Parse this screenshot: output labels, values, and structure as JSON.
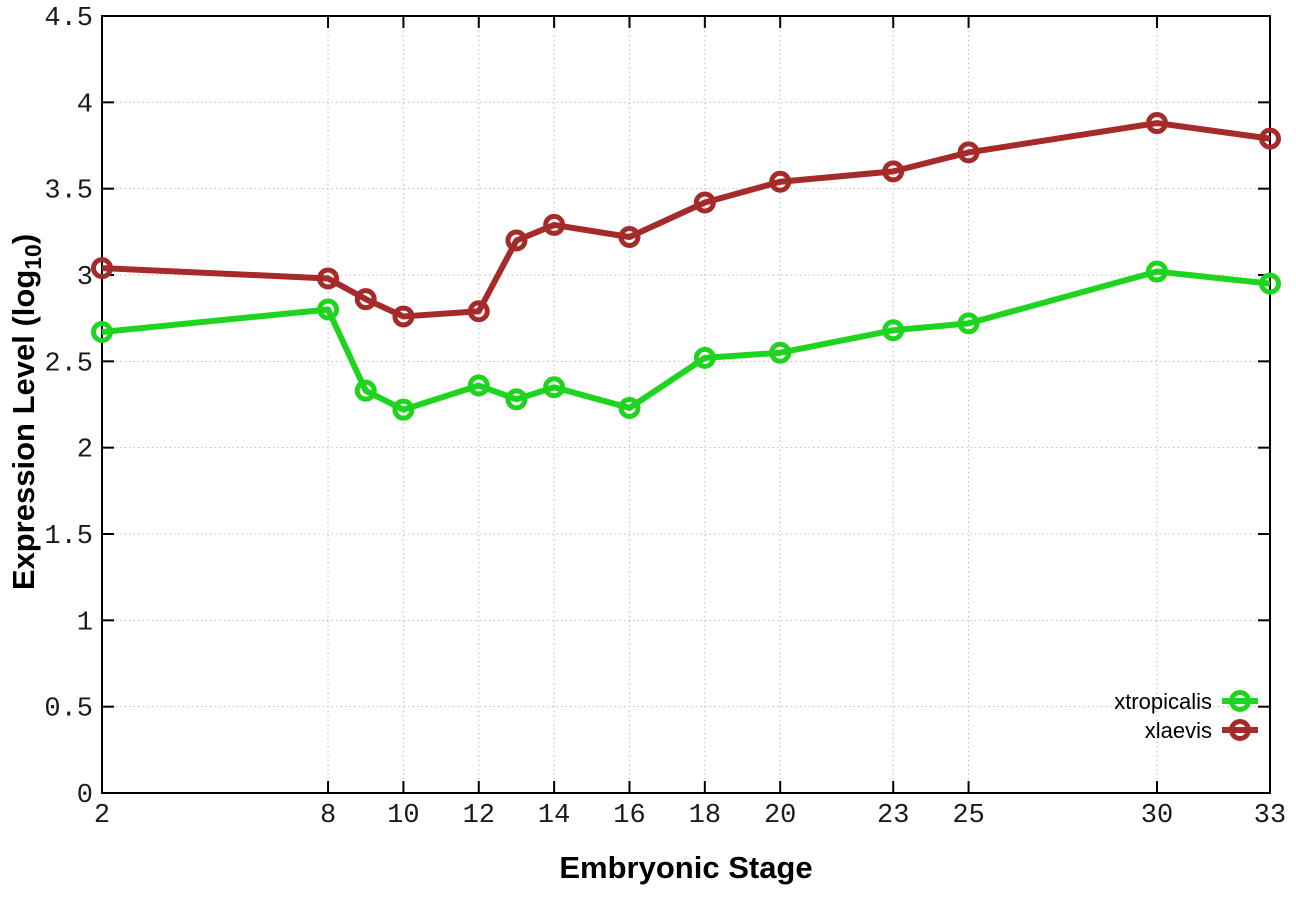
{
  "chart_data": {
    "type": "line",
    "title": "",
    "xlabel": "Embryonic Stage",
    "ylabel": "Expression Level (log10)",
    "ylabel_parts": {
      "prefix": "Expression Level (log",
      "sub": "10",
      "suffix": ")"
    },
    "x": [
      2,
      8,
      9,
      10,
      12,
      13,
      14,
      16,
      18,
      20,
      23,
      25,
      30,
      33
    ],
    "series": [
      {
        "name": "xtropicalis",
        "color": "#1ED41E",
        "marker": "open-circle",
        "values": [
          2.67,
          2.8,
          2.33,
          2.22,
          2.36,
          2.28,
          2.35,
          2.23,
          2.52,
          2.55,
          2.68,
          2.72,
          3.02,
          2.95
        ]
      },
      {
        "name": "xlaevis",
        "color": "#A52A2A",
        "marker": "open-circle",
        "values": [
          3.04,
          2.98,
          2.86,
          2.76,
          2.79,
          3.2,
          3.29,
          3.22,
          3.42,
          3.54,
          3.6,
          3.71,
          3.88,
          3.79
        ]
      }
    ],
    "xlim": [
      2,
      33
    ],
    "ylim": [
      0,
      4.5
    ],
    "xticks": [
      2,
      8,
      10,
      12,
      14,
      16,
      18,
      20,
      23,
      25,
      30,
      33
    ],
    "xtick_labels": [
      "2",
      "8",
      "10",
      "12",
      "14",
      "16",
      "18",
      "20",
      "23",
      "25",
      "30",
      "33"
    ],
    "yticks": [
      0,
      0.5,
      1,
      1.5,
      2,
      2.5,
      3,
      3.5,
      4,
      4.5
    ],
    "ytick_labels": [
      "0",
      "0.5",
      "1",
      "1.5",
      "2",
      "2.5",
      "3",
      "3.5",
      "4",
      "4.5"
    ],
    "grid": true,
    "legend_position": "inside-bottom-right"
  }
}
